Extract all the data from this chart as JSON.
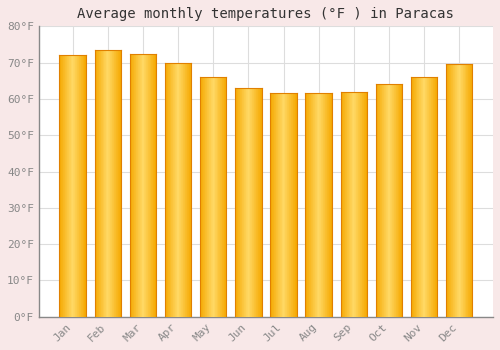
{
  "title": "Average monthly temperatures (°F ) in Paracas",
  "months": [
    "Jan",
    "Feb",
    "Mar",
    "Apr",
    "May",
    "Jun",
    "Jul",
    "Aug",
    "Sep",
    "Oct",
    "Nov",
    "Dec"
  ],
  "values": [
    72,
    73.5,
    72.5,
    70,
    66,
    63,
    61.5,
    61.5,
    62,
    64,
    66,
    69.5
  ],
  "bar_color_center": "#FFD966",
  "bar_color_edge": "#F5A800",
  "plot_bg_color": "#FFFFFF",
  "fig_bg_color": "#F8E8E8",
  "ylim": [
    0,
    80
  ],
  "yticks": [
    0,
    10,
    20,
    30,
    40,
    50,
    60,
    70,
    80
  ],
  "grid_color": "#dddddd",
  "title_fontsize": 10,
  "tick_fontsize": 8,
  "tick_color": "#888888",
  "axis_color": "#888888",
  "bar_width": 0.75
}
